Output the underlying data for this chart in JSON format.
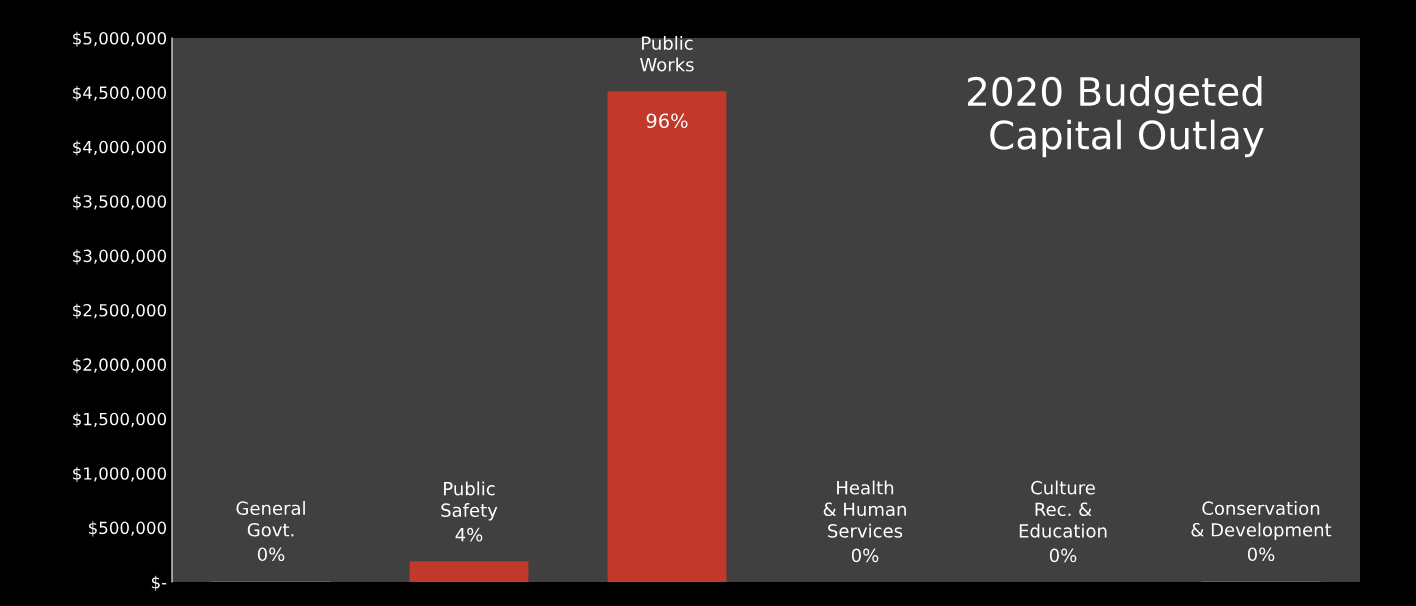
{
  "chart_data": {
    "type": "bar",
    "title": "2020 Budgeted\nCapital Outlay",
    "categories": [
      "General\nGovt.",
      "Public\nSafety",
      "Public\nWorks",
      "Health\n& Human\nServices",
      "Culture\nRec. &\nEducation",
      "Conservation\n& Development"
    ],
    "values": [
      10000,
      190000,
      4510000,
      0,
      0,
      10000
    ],
    "annotations": [
      {
        "text": "0%",
        "x": "General\nGovt.",
        "y": 10000
      },
      {
        "text": "4%",
        "x": "Public\nSafety",
        "y": 190000
      },
      {
        "text": "96%",
        "x": "Public\nWorks",
        "y": 4510000
      },
      {
        "text": "0%",
        "x": "Health\n& Human\nServices",
        "y": 0
      },
      {
        "text": "0%",
        "x": "Culture\nRec. &\nEducation",
        "y": 0
      },
      {
        "text": "0%",
        "x": "Conservation\n& Development",
        "y": 10000
      }
    ],
    "color": "#c0392b",
    "ylim": [
      0,
      5000000
    ],
    "yticks": [
      {
        "value": 0,
        "label": "$-"
      },
      {
        "value": 500000,
        "label": "$500,000"
      },
      {
        "value": 1000000,
        "label": "$1,000,000"
      },
      {
        "value": 1500000,
        "label": "$1,500,000"
      },
      {
        "value": 2000000,
        "label": "$2,000,000"
      },
      {
        "value": 2500000,
        "label": "$2,500,000"
      },
      {
        "value": 3000000,
        "label": "$3,000,000"
      },
      {
        "value": 3500000,
        "label": "$3,500,000"
      },
      {
        "value": 4000000,
        "label": "$4,000,000"
      },
      {
        "value": 4500000,
        "label": "$4,500,000"
      },
      {
        "value": 5000000,
        "label": "$5,000,000"
      }
    ],
    "grid": false
  }
}
